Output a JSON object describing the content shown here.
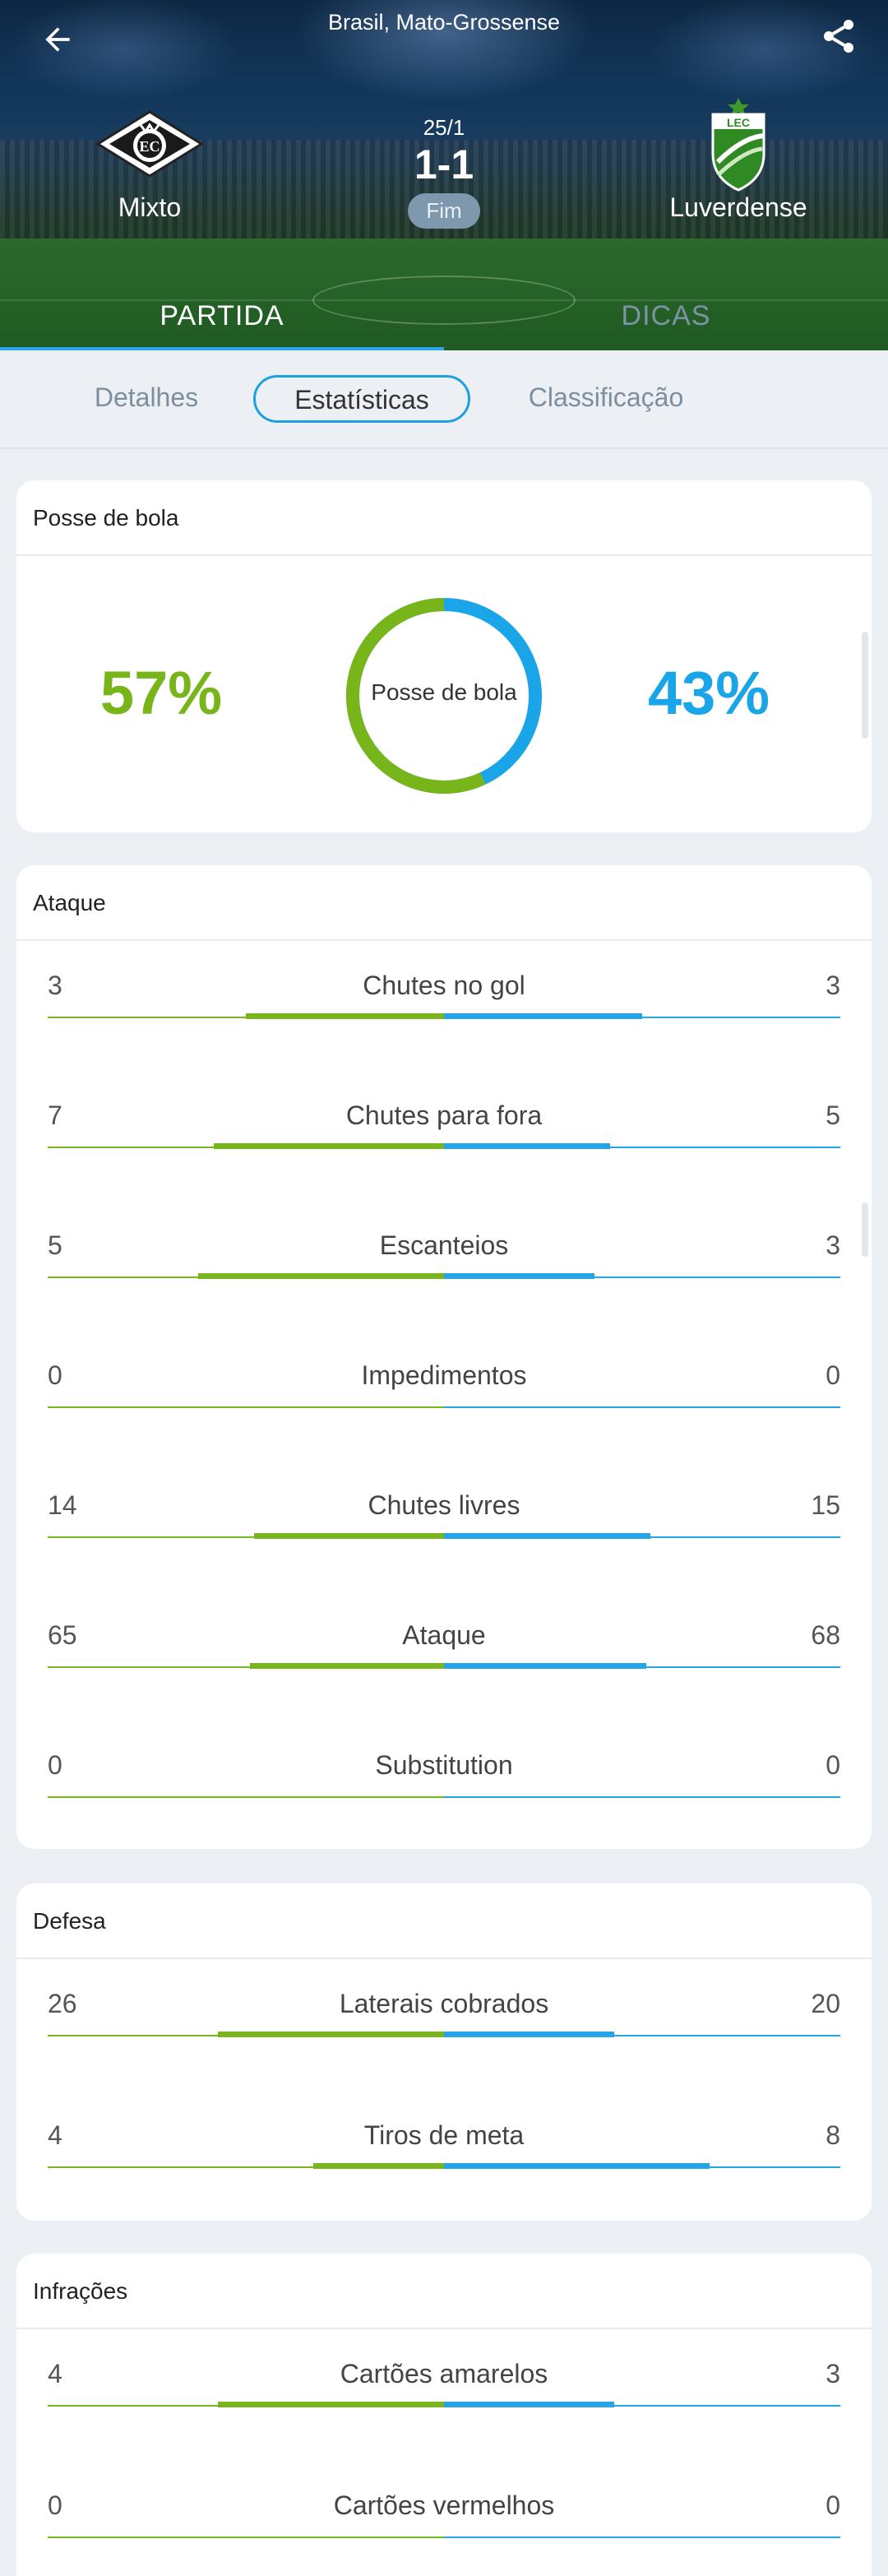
{
  "header": {
    "league": "Brasil, Mato-Grossense",
    "home_team": "Mixto",
    "away_team": "Luverdense",
    "date": "25/1",
    "score": "1-1",
    "status": "Fim",
    "tabs": [
      "PARTIDA",
      "DICAS"
    ]
  },
  "sub_tabs": [
    "Detalhes",
    "Estatísticas",
    "Classificação"
  ],
  "possession": {
    "title": "Posse de bola",
    "home": "57%",
    "away": "43%",
    "center_label": "Posse de bola",
    "home_fraction": 0.57,
    "away_fraction": 0.43
  },
  "colors": {
    "home": "#79b51c",
    "away": "#25a5e6",
    "accent": "#1fa0de"
  },
  "sections": [
    {
      "title": "Ataque",
      "stats": [
        {
          "label": "Chutes no gol",
          "home": "3",
          "away": "3",
          "home_share": 0.5,
          "away_share": 0.5
        },
        {
          "label": "Chutes para fora",
          "home": "7",
          "away": "5",
          "home_share": 0.58,
          "away_share": 0.42
        },
        {
          "label": "Escanteios",
          "home": "5",
          "away": "3",
          "home_share": 0.62,
          "away_share": 0.38
        },
        {
          "label": "Impedimentos",
          "home": "0",
          "away": "0",
          "home_share": 0,
          "away_share": 0
        },
        {
          "label": "Chutes livres",
          "home": "14",
          "away": "15",
          "home_share": 0.48,
          "away_share": 0.52
        },
        {
          "label": "Ataque",
          "home": "65",
          "away": "68",
          "home_share": 0.49,
          "away_share": 0.51
        },
        {
          "label": "Substitution",
          "home": "0",
          "away": "0",
          "home_share": 0,
          "away_share": 0
        }
      ]
    },
    {
      "title": "Defesa",
      "stats": [
        {
          "label": "Laterais cobrados",
          "home": "26",
          "away": "20",
          "home_share": 0.57,
          "away_share": 0.43
        },
        {
          "label": "Tiros de meta",
          "home": "4",
          "away": "8",
          "home_share": 0.33,
          "away_share": 0.67
        }
      ]
    },
    {
      "title": "Infrações",
      "stats": [
        {
          "label": "Cartões amarelos",
          "home": "4",
          "away": "3",
          "home_share": 0.57,
          "away_share": 0.43
        },
        {
          "label": "Cartões vermelhos",
          "home": "0",
          "away": "0",
          "home_share": 0,
          "away_share": 0
        }
      ]
    }
  ]
}
